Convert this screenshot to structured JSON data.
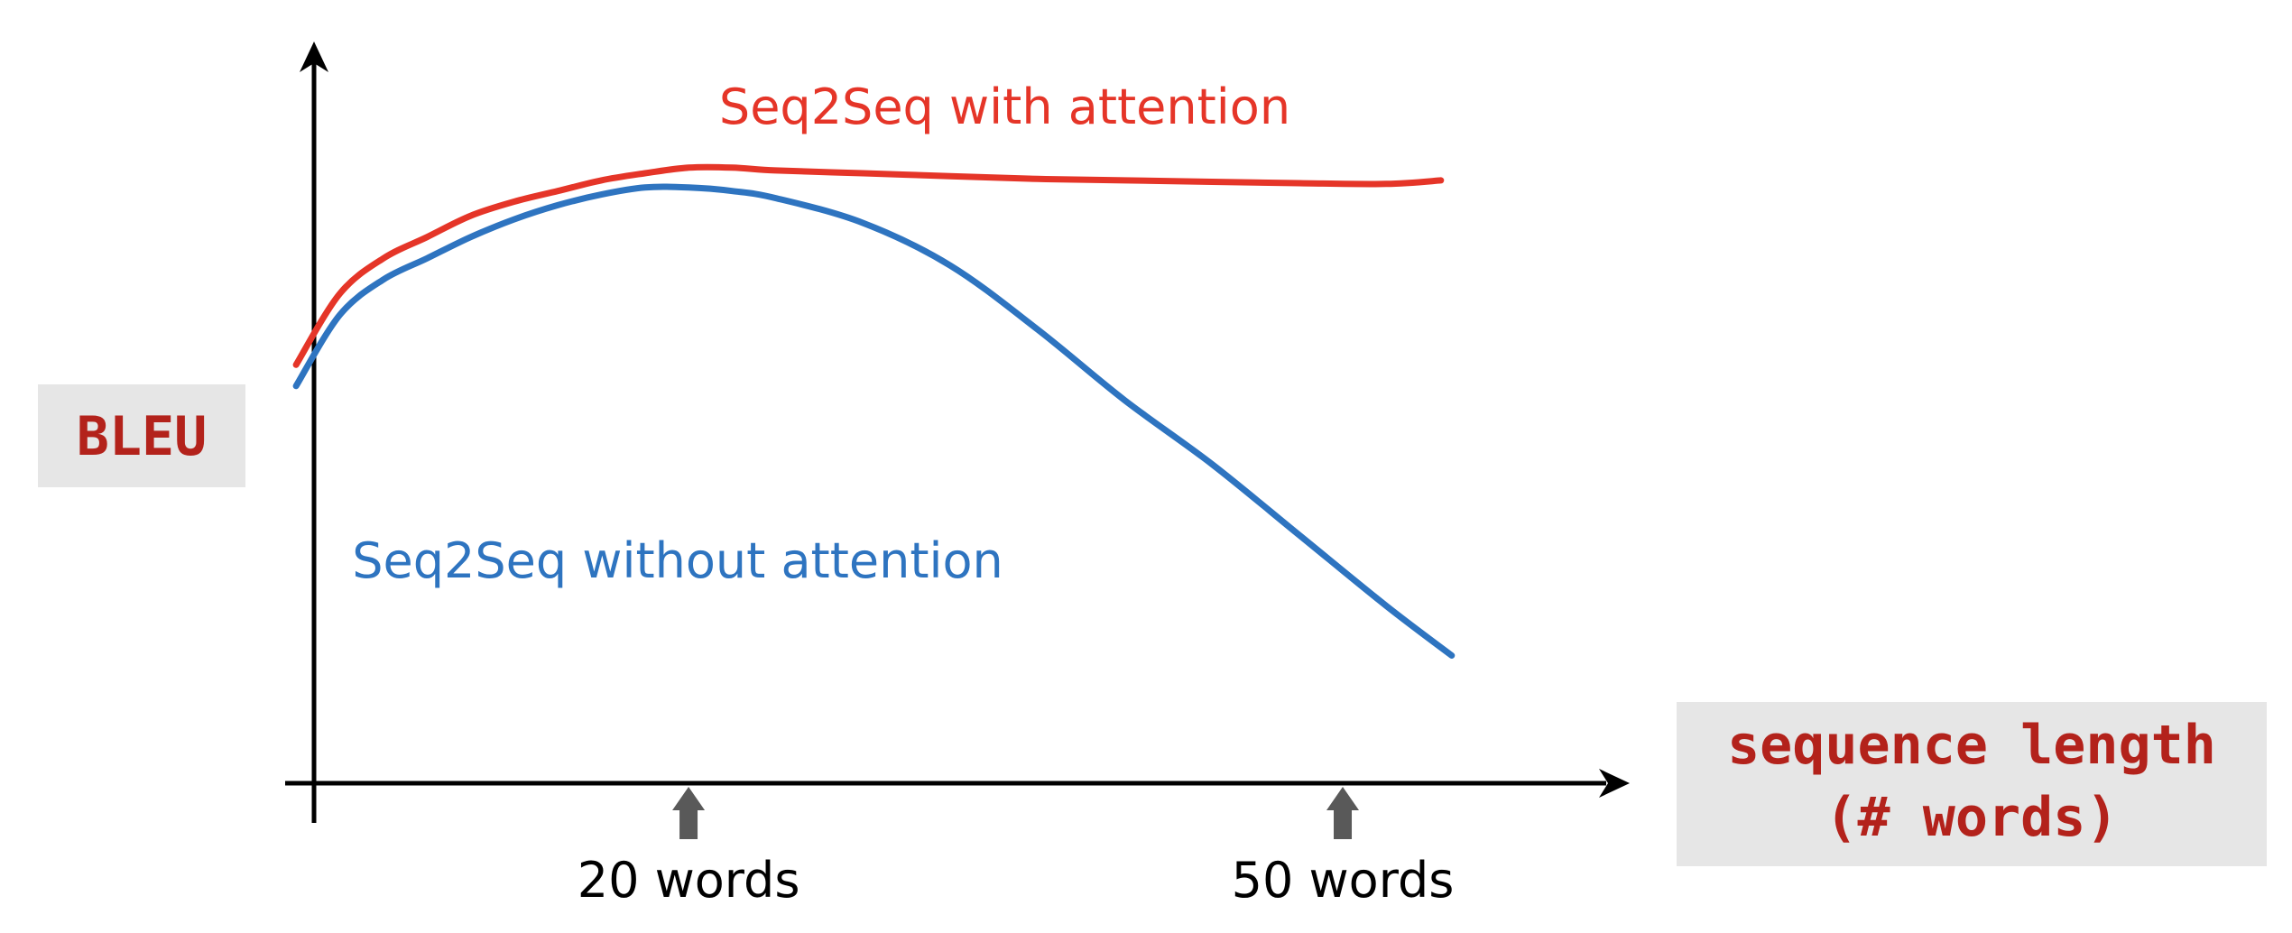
{
  "colors": {
    "with_attention": "#e53528",
    "without_attention": "#2e74c0",
    "axis": "#000000",
    "axis_title_text": "#b3221b",
    "axis_title_box": "#e6e6e6",
    "tick_marker": "#595959"
  },
  "chart_data": {
    "type": "line",
    "title": "",
    "xlabel_lines": [
      "sequence length",
      "(# words)"
    ],
    "ylabel": "BLEU",
    "x_ticks": [
      {
        "value": 20,
        "label": "20 words"
      },
      {
        "value": 50,
        "label": "50 words"
      }
    ],
    "x_tick_marker": "up-arrow",
    "xlim": [
      1.5,
      62
    ],
    "ylim": [
      0,
      100
    ],
    "y_ticks": [],
    "grid": false,
    "legend": "inline labels",
    "series": [
      {
        "name": "Seq2Seq with attention",
        "color_key": "with_attention",
        "label_anchor": {
          "x": 34.5,
          "y": 93
        },
        "x": [
          2,
          4,
          6,
          8,
          10,
          12,
          14,
          16,
          18,
          20,
          22,
          24,
          28,
          32,
          36,
          40,
          44,
          48,
          52,
          54.5
        ],
        "y": [
          59,
          69,
          74,
          77,
          80,
          82,
          83.5,
          85,
          86,
          86.8,
          86.8,
          86.4,
          86,
          85.6,
          85.2,
          85,
          84.8,
          84.6,
          84.5,
          85
        ]
      },
      {
        "name": "Seq2Seq without attention",
        "color_key": "without_attention",
        "label_anchor": {
          "x": 19.5,
          "y": 29
        },
        "x": [
          2,
          4,
          6,
          8,
          10,
          12,
          14,
          16,
          18,
          20,
          22,
          24,
          28,
          32,
          36,
          40,
          44,
          48,
          52,
          55
        ],
        "y": [
          56,
          66,
          71,
          74,
          77,
          79.5,
          81.5,
          83,
          84,
          84,
          83.5,
          82.5,
          79,
          73,
          64,
          54,
          45,
          35,
          25,
          18
        ]
      }
    ]
  }
}
